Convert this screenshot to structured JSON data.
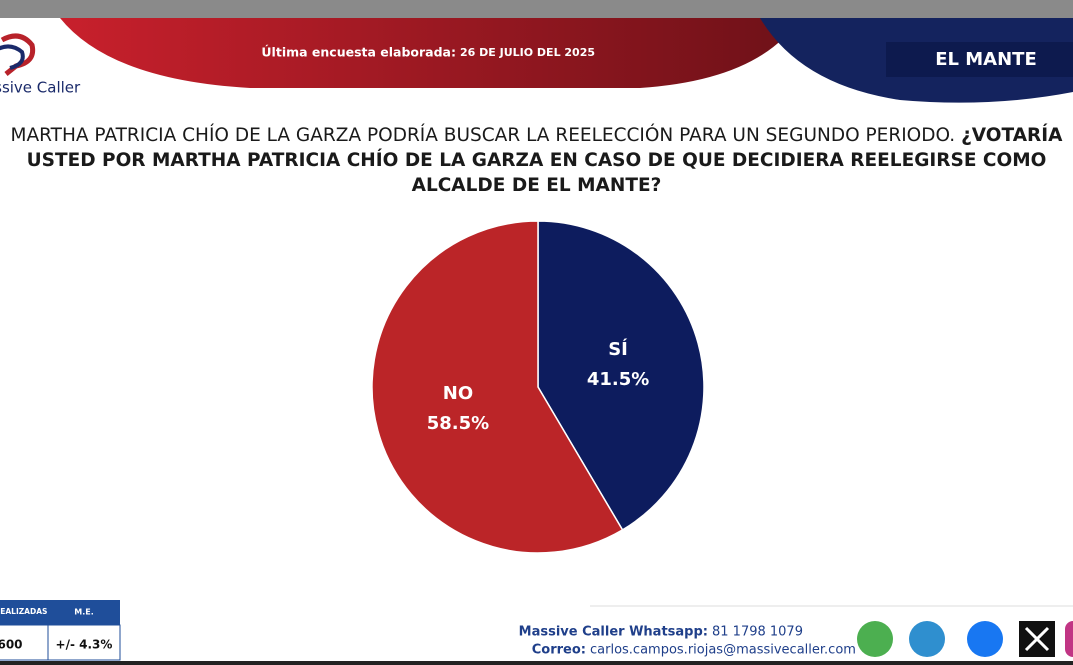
{
  "header": {
    "date_label": "Última encuesta elaborada:",
    "date": "26 DE JULIO DEL 2025",
    "region": "EL MANTE",
    "logo": "Massive Caller"
  },
  "chart_data": {
    "type": "pie",
    "title": "MARTHA PATRICIA CHÍO DE LA GARZA PODRÍA BUSCAR LA REELECCIÓN PARA UN SEGUNDO PERIODO.",
    "subtitle": "¿VOTARÍA USTED POR MARTHA PATRICIA CHÍO DE LA GARZA EN CASO DE QUE DECIDIERA REELEGIRSE COMO ALCALDE DE EL MANTE?",
    "categories": [
      "SÍ",
      "NO"
    ],
    "values": [
      41.5,
      58.5
    ],
    "value_labels": [
      "41.5%",
      "58.5%"
    ],
    "colors": [
      "#0d1c5e",
      "#bb2528"
    ]
  },
  "footer": {
    "table": {
      "headers": [
        "ENCUESTAS REALIZADAS",
        "M.E."
      ],
      "rows": [
        [
          "600",
          "+/- 4.3%"
        ]
      ]
    },
    "whatsapp_label": "Massive Caller Whatsapp:",
    "whatsapp": "81 1798 1079",
    "email_label": "Correo:",
    "email": "carlos.campos.riojas@massivecaller.com"
  }
}
